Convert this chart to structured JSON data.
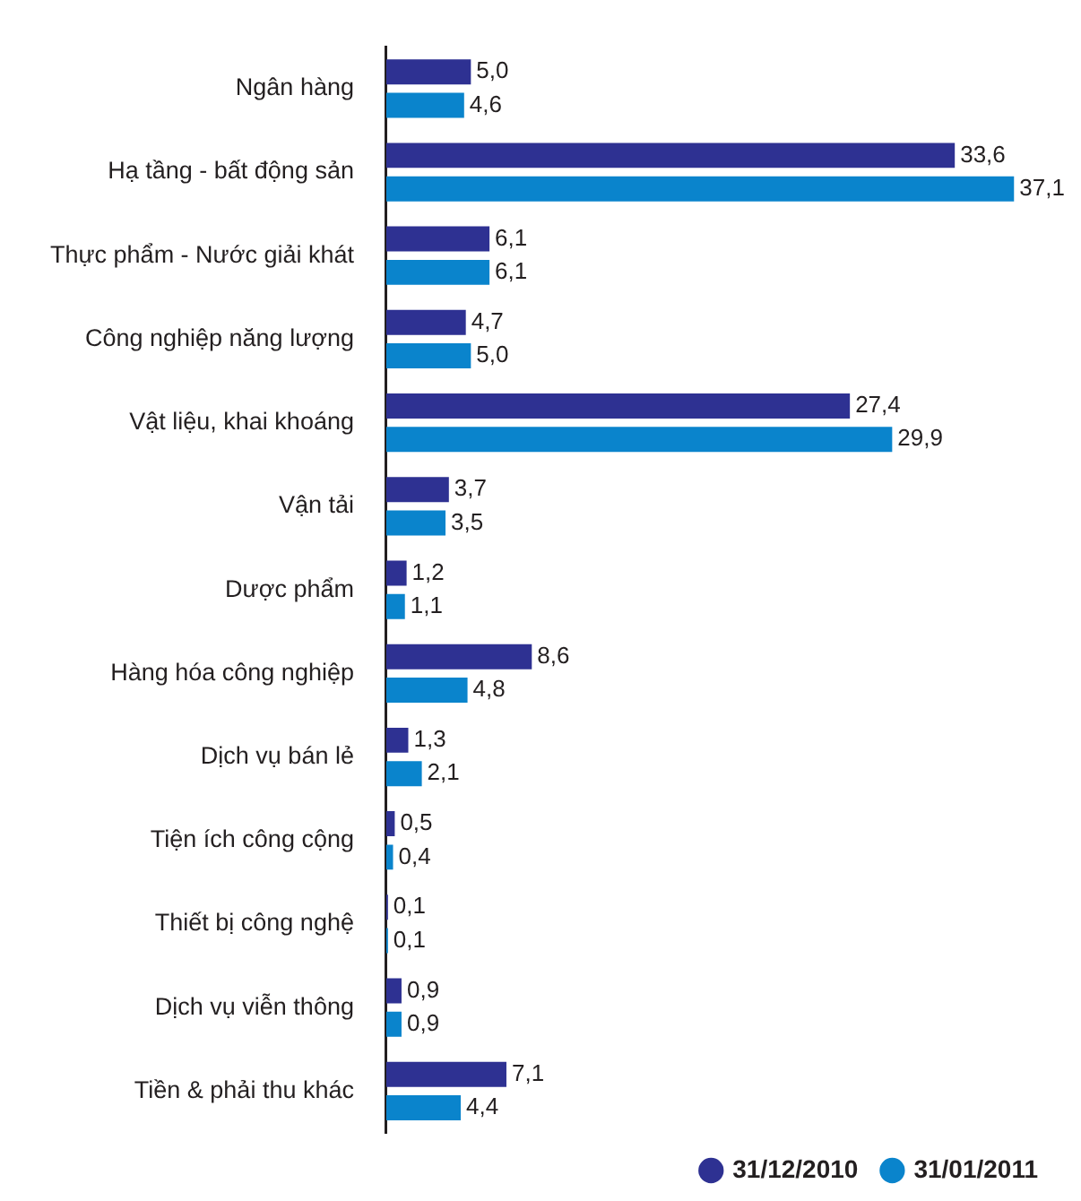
{
  "chart_data": {
    "type": "bar",
    "orientation": "horizontal",
    "tick_labels": "y",
    "grid": false,
    "legend": "bottom right",
    "categories": [
      "Ngân hàng",
      "Hạ tầng - bất động sản",
      "Thực phẩm - Nước giải khát",
      "Công nghiệp năng lượng",
      "Vật liệu, khai khoáng",
      "Vận tải",
      "Dược phẩm",
      "Hàng hóa công nghiệp",
      "Dịch vụ bán lẻ",
      "Tiện ích công cộng",
      "Thiết bị công nghệ",
      "Dịch vụ viễn thông",
      "Tiền & phải thu khác"
    ],
    "series": [
      {
        "name": "31/12/2010",
        "color": "#2e3192",
        "values": [
          5.0,
          33.6,
          6.1,
          4.7,
          27.4,
          3.7,
          1.2,
          8.6,
          1.3,
          0.5,
          0.1,
          0.9,
          7.1
        ],
        "value_labels": [
          "5,0",
          "33,6",
          "6,1",
          "4,7",
          "27,4",
          "3,7",
          "1,2",
          "8,6",
          "1,3",
          "0,5",
          "0,1",
          "0,9",
          "7,1"
        ]
      },
      {
        "name": "31/01/2011",
        "color": "#0a84cc",
        "values": [
          4.6,
          37.1,
          6.1,
          5.0,
          29.9,
          3.5,
          1.1,
          4.8,
          2.1,
          0.4,
          0.1,
          0.9,
          4.4
        ],
        "value_labels": [
          "4,6",
          "37,1",
          "6,1",
          "5,0",
          "29,9",
          "3,5",
          "1,1",
          "4,8",
          "2,1",
          "0,4",
          "0,1",
          "0,9",
          "4,4"
        ]
      }
    ]
  }
}
